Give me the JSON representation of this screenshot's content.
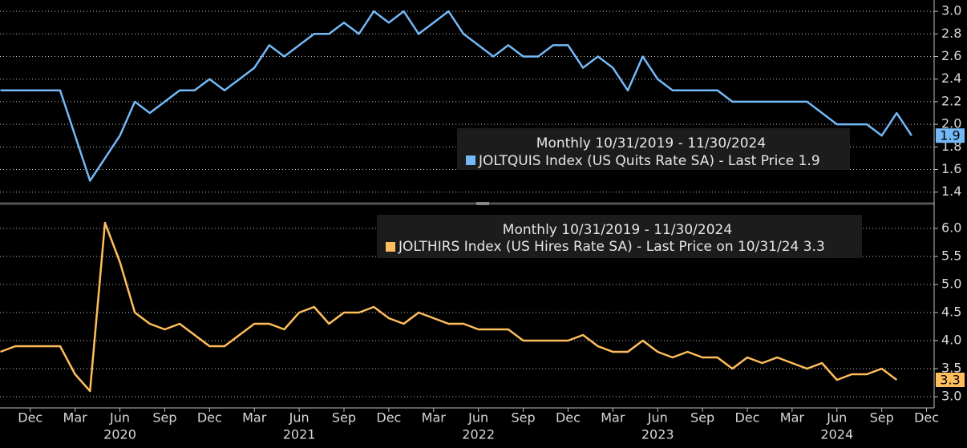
{
  "chart_data": [
    {
      "type": "line",
      "legend_title": "Monthly 10/31/2019 - 11/30/2024",
      "x": [
        "2019-10",
        "2019-11",
        "2019-12",
        "2020-01",
        "2020-02",
        "2020-03",
        "2020-04",
        "2020-05",
        "2020-06",
        "2020-07",
        "2020-08",
        "2020-09",
        "2020-10",
        "2020-11",
        "2020-12",
        "2021-01",
        "2021-02",
        "2021-03",
        "2021-04",
        "2021-05",
        "2021-06",
        "2021-07",
        "2021-08",
        "2021-09",
        "2021-10",
        "2021-11",
        "2021-12",
        "2022-01",
        "2022-02",
        "2022-03",
        "2022-04",
        "2022-05",
        "2022-06",
        "2022-07",
        "2022-08",
        "2022-09",
        "2022-10",
        "2022-11",
        "2022-12",
        "2023-01",
        "2023-02",
        "2023-03",
        "2023-04",
        "2023-05",
        "2023-06",
        "2023-07",
        "2023-08",
        "2023-09",
        "2023-10",
        "2023-11",
        "2023-12",
        "2024-01",
        "2024-02",
        "2024-03",
        "2024-04",
        "2024-05",
        "2024-06",
        "2024-07",
        "2024-08",
        "2024-09",
        "2024-10",
        "2024-11"
      ],
      "series": [
        {
          "name": "JOLTQUIS Index (US Quits Rate SA) - Last Price 1.9",
          "color": "#73b9f7",
          "last_price": 1.9,
          "values": [
            2.3,
            2.3,
            2.3,
            2.3,
            2.3,
            1.9,
            1.5,
            1.7,
            1.9,
            2.2,
            2.1,
            2.2,
            2.3,
            2.3,
            2.4,
            2.3,
            2.4,
            2.5,
            2.7,
            2.6,
            2.7,
            2.8,
            2.8,
            2.9,
            2.8,
            3.0,
            2.9,
            3.0,
            2.8,
            2.9,
            3.0,
            2.8,
            2.7,
            2.6,
            2.7,
            2.6,
            2.6,
            2.7,
            2.7,
            2.5,
            2.6,
            2.5,
            2.3,
            2.6,
            2.4,
            2.3,
            2.3,
            2.3,
            2.3,
            2.2,
            2.2,
            2.2,
            2.2,
            2.2,
            2.2,
            2.1,
            2.0,
            2.0,
            2.0,
            1.9,
            2.1,
            1.9
          ]
        }
      ],
      "ylim": [
        1.32,
        3.1
      ],
      "yticks": [
        1.4,
        1.6,
        1.8,
        {
          "value": 2,
          "label": "2.0"
        },
        2.2,
        2.4,
        2.6,
        2.8,
        {
          "value": 3,
          "label": "3.0"
        }
      ],
      "grid": true
    },
    {
      "type": "line",
      "legend_title": "Monthly 10/31/2019 - 11/30/2024",
      "x": [
        "2019-10",
        "2019-11",
        "2019-12",
        "2020-01",
        "2020-02",
        "2020-03",
        "2020-04",
        "2020-05",
        "2020-06",
        "2020-07",
        "2020-08",
        "2020-09",
        "2020-10",
        "2020-11",
        "2020-12",
        "2021-01",
        "2021-02",
        "2021-03",
        "2021-04",
        "2021-05",
        "2021-06",
        "2021-07",
        "2021-08",
        "2021-09",
        "2021-10",
        "2021-11",
        "2021-12",
        "2022-01",
        "2022-02",
        "2022-03",
        "2022-04",
        "2022-05",
        "2022-06",
        "2022-07",
        "2022-08",
        "2022-09",
        "2022-10",
        "2022-11",
        "2022-12",
        "2023-01",
        "2023-02",
        "2023-03",
        "2023-04",
        "2023-05",
        "2023-06",
        "2023-07",
        "2023-08",
        "2023-09",
        "2023-10",
        "2023-11",
        "2023-12",
        "2024-01",
        "2024-02",
        "2024-03",
        "2024-04",
        "2024-05",
        "2024-06",
        "2024-07",
        "2024-08",
        "2024-09",
        "2024-10",
        "2024-11"
      ],
      "series": [
        {
          "name": "JOLTHIRS Index (US Hires Rate SA) - Last Price on 10/31/24 3.3",
          "color": "#ffbe5c",
          "last_price": 3.3,
          "values": [
            3.8,
            3.9,
            3.9,
            3.9,
            3.9,
            3.4,
            3.1,
            6.1,
            5.4,
            4.5,
            4.3,
            4.2,
            4.3,
            4.1,
            3.9,
            3.9,
            4.1,
            4.3,
            4.3,
            4.2,
            4.5,
            4.6,
            4.3,
            4.5,
            4.5,
            4.6,
            4.4,
            4.3,
            4.5,
            4.4,
            4.3,
            4.3,
            4.2,
            4.2,
            4.2,
            4.0,
            4.0,
            4.0,
            4.0,
            4.1,
            3.9,
            3.8,
            3.8,
            4.0,
            3.8,
            3.7,
            3.8,
            3.7,
            3.7,
            3.5,
            3.7,
            3.6,
            3.7,
            3.6,
            3.5,
            3.6,
            3.3,
            3.4,
            3.4,
            3.5,
            3.3,
            null
          ]
        }
      ],
      "ylim": [
        2.8,
        6.4
      ],
      "yticks": [
        {
          "value": 3,
          "label": "3.0"
        },
        3.5,
        {
          "value": 4,
          "label": "4.0"
        },
        4.5,
        {
          "value": 5,
          "label": "5.0"
        },
        5.5,
        {
          "value": 6,
          "label": "6.0"
        }
      ],
      "grid": true,
      "xticks": [
        {
          "value": "2019-12",
          "label": "Dec"
        },
        {
          "value": "2020-03",
          "label": "Mar"
        },
        {
          "value": "2020-06",
          "label": "Jun"
        },
        {
          "value": "2020-09",
          "label": "Sep"
        },
        {
          "value": "2020-12",
          "label": "Dec"
        },
        {
          "value": "2021-03",
          "label": "Mar"
        },
        {
          "value": "2021-06",
          "label": "Jun"
        },
        {
          "value": "2021-09",
          "label": "Sep"
        },
        {
          "value": "2021-12",
          "label": "Dec"
        },
        {
          "value": "2022-03",
          "label": "Mar"
        },
        {
          "value": "2022-06",
          "label": "Jun"
        },
        {
          "value": "2022-09",
          "label": "Sep"
        },
        {
          "value": "2022-12",
          "label": "Dec"
        },
        {
          "value": "2023-03",
          "label": "Mar"
        },
        {
          "value": "2023-06",
          "label": "Jun"
        },
        {
          "value": "2023-09",
          "label": "Sep"
        },
        {
          "value": "2023-12",
          "label": "Dec"
        },
        {
          "value": "2024-03",
          "label": "Mar"
        },
        {
          "value": "2024-06",
          "label": "Jun"
        },
        {
          "value": "2024-09",
          "label": "Sep"
        },
        {
          "value": "2024-12",
          "label": "Dec"
        }
      ],
      "year_labels": [
        {
          "value": "2020-06",
          "label": "2020"
        },
        {
          "value": "2021-06",
          "label": "2021"
        },
        {
          "value": "2022-06",
          "label": "2022"
        },
        {
          "value": "2023-06",
          "label": "2023"
        },
        {
          "value": "2024-06",
          "label": "2024"
        }
      ]
    }
  ]
}
